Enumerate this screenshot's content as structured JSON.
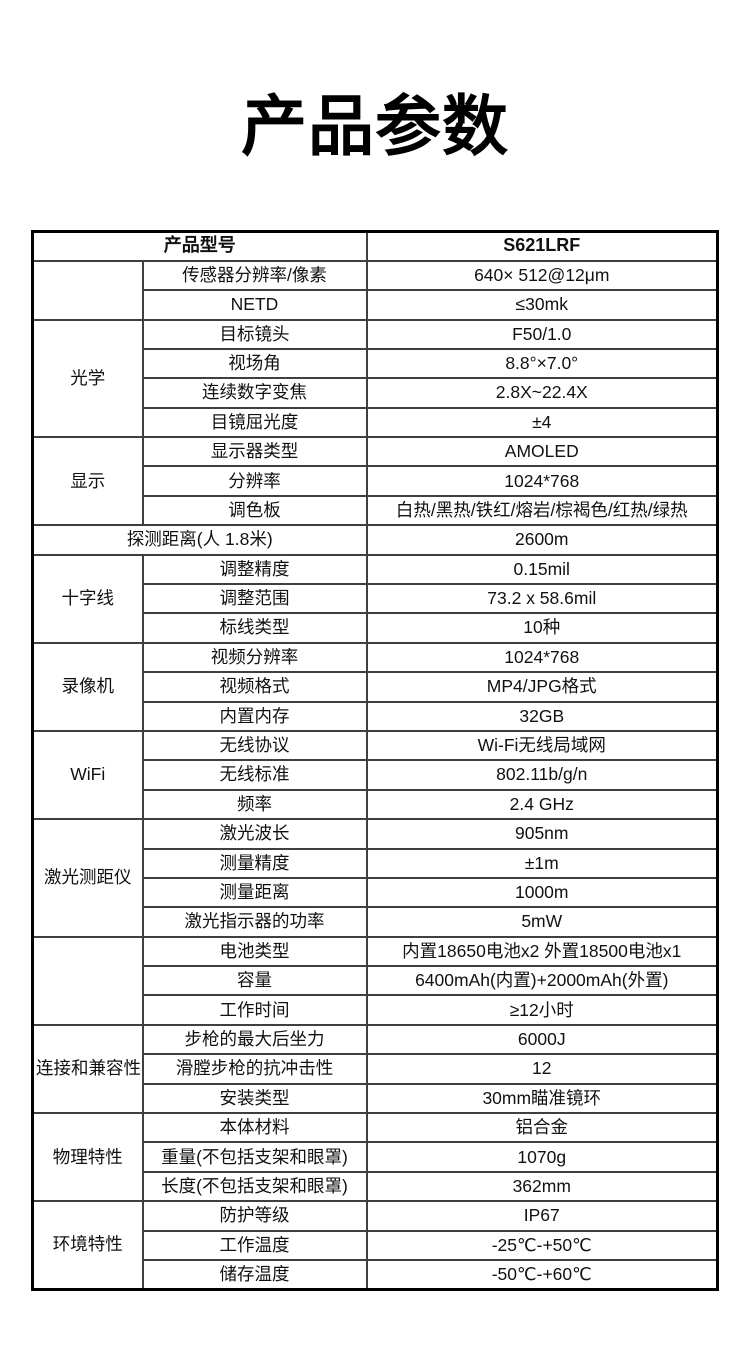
{
  "page": {
    "title": "产品参数",
    "background_color": "#ffffff",
    "text_color": "#111111",
    "border_color_outer": "#000000",
    "border_color_inner": "#3f3f3f"
  },
  "table": {
    "header_row": {
      "label": "产品型号",
      "value": "S621LRF"
    },
    "sections": [
      {
        "type": "group",
        "group": "",
        "rows": [
          {
            "param": "传感器分辨率/像素",
            "value": "640× 512@12μm"
          },
          {
            "param": "NETD",
            "value": "≤30mk"
          }
        ]
      },
      {
        "type": "group",
        "group": "光学",
        "rows": [
          {
            "param": "目标镜头",
            "value": "F50/1.0"
          },
          {
            "param": "视场角",
            "value": "8.8°×7.0°"
          },
          {
            "param": "连续数字变焦",
            "value": "2.8X~22.4X"
          },
          {
            "param": "目镜屈光度",
            "value": "±4"
          }
        ]
      },
      {
        "type": "group",
        "group": "显示",
        "rows": [
          {
            "param": "显示器类型",
            "value": "AMOLED"
          },
          {
            "param": "分辨率",
            "value": "1024*768"
          },
          {
            "param": "调色板",
            "value": "白热/黑热/铁红/熔岩/棕褐色/红热/绿热"
          }
        ]
      },
      {
        "type": "full",
        "param": "探测距离(人 1.8米)",
        "value": "2600m"
      },
      {
        "type": "group",
        "group": "十字线",
        "rows": [
          {
            "param": "调整精度",
            "value": "0.15mil"
          },
          {
            "param": "调整范围",
            "value": "73.2 x 58.6mil"
          },
          {
            "param": "标线类型",
            "value": "10种"
          }
        ]
      },
      {
        "type": "group",
        "group": "录像机",
        "rows": [
          {
            "param": "视频分辨率",
            "value": "1024*768"
          },
          {
            "param": "视频格式",
            "value": "MP4/JPG格式"
          },
          {
            "param": "内置内存",
            "value": "32GB"
          }
        ]
      },
      {
        "type": "group",
        "group": "WiFi",
        "rows": [
          {
            "param": "无线协议",
            "value": "Wi-Fi无线局域网"
          },
          {
            "param": "无线标准",
            "value": "802.11b/g/n"
          },
          {
            "param": "频率",
            "value": "2.4 GHz"
          }
        ]
      },
      {
        "type": "group",
        "group": "激光测距仪",
        "rows": [
          {
            "param": "激光波长",
            "value": "905nm"
          },
          {
            "param": "测量精度",
            "value": "±1m"
          },
          {
            "param": "测量距离",
            "value": "1000m"
          },
          {
            "param": "激光指示器的功率",
            "value": "5mW"
          }
        ]
      },
      {
        "type": "group",
        "group": "",
        "rows": [
          {
            "param": "电池类型",
            "value": "内置18650电池x2  外置18500电池x1"
          },
          {
            "param": "容量",
            "value": "6400mAh(内置)+2000mAh(外置)"
          },
          {
            "param": "工作时间",
            "value": "≥12小时"
          }
        ]
      },
      {
        "type": "group",
        "group": "连接和兼容性",
        "rows": [
          {
            "param": "步枪的最大后坐力",
            "value": "6000J"
          },
          {
            "param": "滑膛步枪的抗冲击性",
            "value": "12"
          },
          {
            "param": "安装类型",
            "value": "30mm瞄准镜环"
          }
        ]
      },
      {
        "type": "group",
        "group": "物理特性",
        "rows": [
          {
            "param": "本体材料",
            "value": "铝合金"
          },
          {
            "param": "重量(不包括支架和眼罩)",
            "value": "1070g"
          },
          {
            "param": "长度(不包括支架和眼罩)",
            "value": "362mm"
          }
        ]
      },
      {
        "type": "group",
        "group": "环境特性",
        "rows": [
          {
            "param": "防护等级",
            "value": "IP67"
          },
          {
            "param": "工作温度",
            "value": "-25℃-+50℃"
          },
          {
            "param": "储存温度",
            "value": "-50℃-+60℃"
          }
        ]
      }
    ]
  }
}
